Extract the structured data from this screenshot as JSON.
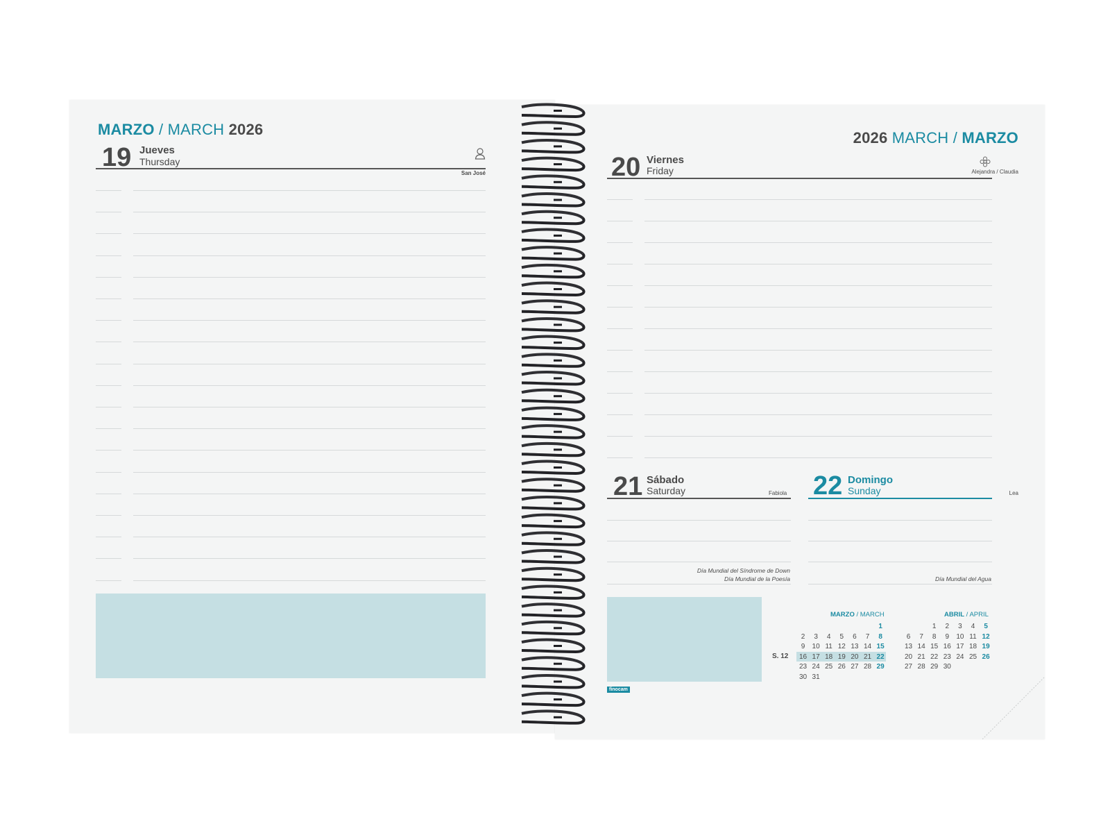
{
  "left_page": {
    "header": {
      "month_es": "MARZO",
      "separator": " / ",
      "month_en": "MARCH",
      "year": " 2026"
    },
    "day": {
      "number": "19",
      "name_es": "Jueves",
      "name_en": "Thursday",
      "saint": "San José",
      "icon": "person-icon"
    }
  },
  "right_page": {
    "header": {
      "year": "2026 ",
      "month_en": "MARCH",
      "separator": " / ",
      "month_es": "MARZO"
    },
    "friday": {
      "number": "20",
      "name_es": "Viernes",
      "name_en": "Friday",
      "saint": "Alejandra / Claudia",
      "icon": "flower-icon"
    },
    "saturday": {
      "number": "21",
      "name_es": "Sábado",
      "name_en": "Saturday",
      "saint": "Fabiola",
      "notes": [
        "Día Mundial del Síndrome de Down",
        "Día Mundial de la Poesía"
      ]
    },
    "sunday": {
      "number": "22",
      "name_es": "Domingo",
      "name_en": "Sunday",
      "saint": "Lea",
      "notes": [
        "Día Mundial del Agua"
      ]
    },
    "logo": "finocam"
  },
  "mini_calendars": {
    "week_label": "S. 12",
    "march": {
      "title_es": "MARZO",
      "separator": " / ",
      "title_en": "MARCH",
      "weeks": [
        [
          "",
          "",
          "",
          "",
          "",
          "",
          "1"
        ],
        [
          "2",
          "3",
          "4",
          "5",
          "6",
          "7",
          "8"
        ],
        [
          "9",
          "10",
          "11",
          "12",
          "13",
          "14",
          "15"
        ],
        [
          "16",
          "17",
          "18",
          "19",
          "20",
          "21",
          "22"
        ],
        [
          "23",
          "24",
          "25",
          "26",
          "27",
          "28",
          "29"
        ],
        [
          "30",
          "31",
          "",
          "",
          "",
          "",
          ""
        ]
      ],
      "highlight_week": 3
    },
    "april": {
      "title_es": "ABRIL",
      "separator": " / ",
      "title_en": "APRIL",
      "weeks": [
        [
          "",
          "",
          "1",
          "2",
          "3",
          "4",
          "5"
        ],
        [
          "6",
          "7",
          "8",
          "9",
          "10",
          "11",
          "12"
        ],
        [
          "13",
          "14",
          "15",
          "16",
          "17",
          "18",
          "19"
        ],
        [
          "20",
          "21",
          "22",
          "23",
          "24",
          "25",
          "26"
        ],
        [
          "27",
          "28",
          "29",
          "30",
          "",
          "",
          ""
        ]
      ]
    }
  },
  "colors": {
    "accent": "#1b8ba2",
    "note_box": "#c5dfe3",
    "text": "#4a4a4a",
    "page": "#f4f5f5"
  }
}
